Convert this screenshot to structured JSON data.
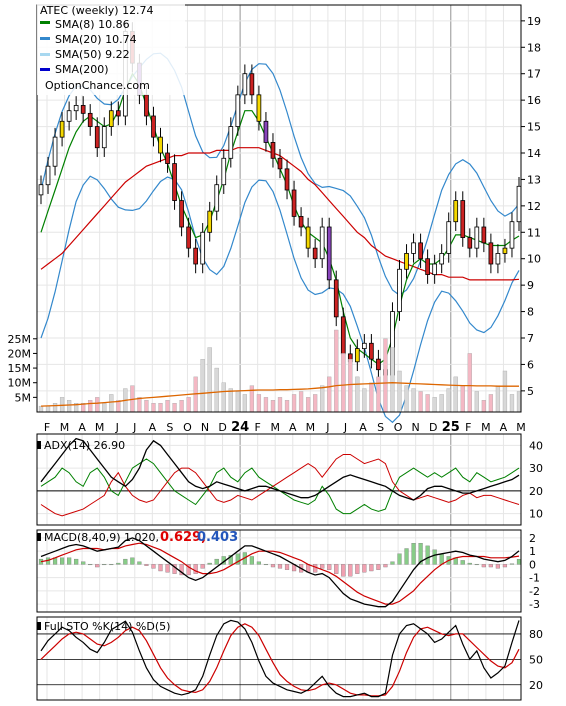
{
  "chart_data": {
    "type": "candlestick",
    "title": "ATEC (weekly) 12.74",
    "watermark": "OptionChance.com",
    "x_labels": [
      "F",
      "M",
      "A",
      "M",
      "J",
      "J",
      "A",
      "S",
      "O",
      "N",
      "D",
      "24",
      "F",
      "M",
      "A",
      "M",
      "J",
      "J",
      "A",
      "S",
      "O",
      "N",
      "D",
      "25",
      "F",
      "M",
      "A",
      "M"
    ],
    "price": {
      "yticks": [
        5,
        6,
        7,
        8,
        9,
        10,
        11,
        12,
        13,
        14,
        15,
        16,
        17,
        18,
        19
      ],
      "ylim": [
        4.2,
        19.6
      ],
      "legend": [
        {
          "label": "SMA(8) 10.86",
          "color": "#008000"
        },
        {
          "label": "SMA(20) 10.74",
          "color": "#3388cc"
        },
        {
          "label": "SMA(50) 9.22",
          "color": "#a8d8f0"
        },
        {
          "label": "SMA(200)",
          "color": "#0000cc"
        }
      ],
      "close": [
        12.8,
        13.5,
        14.6,
        15.2,
        15.6,
        15.8,
        15.5,
        15.0,
        14.2,
        15.0,
        15.6,
        15.4,
        18.6,
        17.4,
        16.2,
        15.4,
        14.6,
        14.0,
        13.6,
        12.2,
        11.2,
        10.4,
        9.8,
        11.0,
        11.8,
        12.8,
        13.8,
        15.0,
        16.2,
        17.0,
        16.2,
        15.2,
        14.4,
        13.8,
        13.4,
        12.6,
        11.6,
        11.2,
        10.4,
        10.0,
        11.2,
        9.2,
        7.8,
        6.4,
        6.1,
        6.6,
        6.8,
        6.2,
        5.8,
        5.6,
        8.0,
        9.6,
        10.2,
        10.6,
        10.0,
        9.4,
        9.8,
        10.2,
        11.4,
        12.2,
        10.8,
        10.4,
        11.2,
        10.6,
        9.8,
        10.2,
        10.4,
        11.4,
        12.74
      ],
      "sma8": [
        11.0,
        11.8,
        12.6,
        13.4,
        14.2,
        14.8,
        15.2,
        15.4,
        15.2,
        15.0,
        15.1,
        15.6,
        16.4,
        17.0,
        16.6,
        15.8,
        15.0,
        14.2,
        13.6,
        12.8,
        12.0,
        11.4,
        10.8,
        10.9,
        11.4,
        12.2,
        13.0,
        14.0,
        14.8,
        15.6,
        15.6,
        15.2,
        14.6,
        14.0,
        13.4,
        12.8,
        12.0,
        11.4,
        11.0,
        10.8,
        10.6,
        10.0,
        9.2,
        8.0,
        7.0,
        6.6,
        6.4,
        6.2,
        6.0,
        6.2,
        7.0,
        8.2,
        9.2,
        9.8,
        10.0,
        9.8,
        9.8,
        10.0,
        10.4,
        10.9,
        10.9,
        10.8,
        10.7,
        10.6,
        10.5,
        10.5,
        10.5,
        10.7,
        10.86
      ],
      "sma20": [
        10.4,
        11.0,
        11.6,
        12.2,
        12.8,
        13.4,
        13.8,
        14.2,
        14.4,
        14.6,
        14.8,
        15.0,
        15.2,
        15.2,
        15.0,
        14.8,
        14.6,
        14.4,
        14.2,
        14.0,
        13.8,
        13.4,
        13.0,
        12.8,
        12.8,
        12.8,
        13.0,
        13.3,
        13.6,
        13.9,
        14.0,
        14.0,
        14.0,
        13.9,
        13.7,
        13.4,
        13.0,
        12.6,
        12.2,
        11.8,
        11.4,
        11.0,
        10.4,
        9.8,
        9.2,
        8.6,
        8.2,
        7.8,
        7.4,
        7.2,
        7.2,
        7.4,
        7.8,
        8.2,
        8.6,
        9.0,
        9.4,
        9.8,
        10.0,
        10.2,
        10.4,
        10.5,
        10.6,
        10.6,
        10.6,
        10.6,
        10.6,
        10.7,
        10.74
      ],
      "sma50": [
        9.6,
        9.8,
        10.0,
        10.2,
        10.5,
        10.8,
        11.1,
        11.4,
        11.7,
        12.0,
        12.3,
        12.6,
        12.9,
        13.1,
        13.3,
        13.5,
        13.6,
        13.7,
        13.8,
        13.9,
        13.9,
        14.0,
        14.0,
        14.0,
        14.0,
        14.1,
        14.1,
        14.1,
        14.2,
        14.2,
        14.2,
        14.2,
        14.1,
        14.0,
        13.9,
        13.7,
        13.5,
        13.3,
        13.0,
        12.8,
        12.5,
        12.2,
        11.9,
        11.6,
        11.3,
        11.0,
        10.8,
        10.5,
        10.3,
        10.1,
        10.0,
        9.9,
        9.8,
        9.7,
        9.6,
        9.5,
        9.4,
        9.4,
        9.3,
        9.3,
        9.3,
        9.2,
        9.2,
        9.2,
        9.2,
        9.2,
        9.2,
        9.2,
        9.22
      ]
    },
    "volume": {
      "yticks": [
        "5M",
        "10M",
        "15M",
        "20M",
        "25M"
      ],
      "ylim": [
        0,
        28
      ],
      "bars": [
        2,
        2,
        3,
        5,
        4,
        3,
        3,
        4,
        5,
        3,
        6,
        4,
        8,
        9,
        5,
        4,
        3,
        3,
        4,
        3,
        4,
        5,
        12,
        18,
        22,
        15,
        10,
        8,
        7,
        6,
        9,
        6,
        5,
        4,
        5,
        4,
        6,
        7,
        5,
        6,
        9,
        12,
        28,
        20,
        18,
        12,
        8,
        10,
        12,
        25,
        22,
        14,
        9,
        8,
        7,
        6,
        5,
        6,
        8,
        12,
        9,
        20,
        7,
        4,
        6,
        9,
        14,
        6,
        7
      ],
      "avg": [
        2,
        2.1,
        2.2,
        2.3,
        2.4,
        2.5,
        2.7,
        2.9,
        3.0,
        3.2,
        3.4,
        3.6,
        4.0,
        4.3,
        4.6,
        4.8,
        5.0,
        5.2,
        5.4,
        5.6,
        5.8,
        6.0,
        6.2,
        6.4,
        6.6,
        6.8,
        7.0,
        7.1,
        7.2,
        7.3,
        7.4,
        7.5,
        7.5,
        7.5,
        7.6,
        7.6,
        7.7,
        7.8,
        7.9,
        8.1,
        8.3,
        8.6,
        9.0,
        9.2,
        9.4,
        9.5,
        9.6,
        9.7,
        9.8,
        9.9,
        10.0,
        9.9,
        9.8,
        9.7,
        9.6,
        9.5,
        9.4,
        9.3,
        9.2,
        9.1,
        9.0,
        9.0,
        8.9,
        8.9,
        8.9,
        8.8,
        8.8,
        8.8,
        8.8
      ]
    },
    "adx": {
      "label": "ADX(14) 26.90",
      "yticks": [
        10,
        20,
        30,
        40
      ],
      "ylim": [
        5,
        45
      ],
      "adx": [
        24,
        28,
        32,
        36,
        40,
        43,
        42,
        38,
        34,
        30,
        26,
        24,
        22,
        25,
        30,
        38,
        42,
        40,
        36,
        32,
        28,
        24,
        22,
        21,
        22,
        24,
        23,
        22,
        21,
        20,
        21,
        22,
        22,
        21,
        20,
        19,
        18,
        17,
        17,
        18,
        20,
        22,
        24,
        26,
        27,
        26,
        25,
        24,
        23,
        22,
        20,
        18,
        17,
        16,
        18,
        21,
        22,
        22,
        21,
        20,
        19,
        19,
        20,
        21,
        22,
        23,
        24,
        25,
        26.9
      ],
      "plus_di": [
        22,
        24,
        26,
        30,
        28,
        24,
        22,
        28,
        30,
        26,
        20,
        18,
        24,
        30,
        32,
        34,
        32,
        28,
        24,
        20,
        18,
        16,
        14,
        18,
        22,
        28,
        30,
        26,
        24,
        28,
        30,
        26,
        24,
        22,
        20,
        18,
        16,
        15,
        14,
        16,
        22,
        18,
        12,
        10,
        10,
        12,
        14,
        12,
        11,
        12,
        20,
        26,
        28,
        30,
        28,
        26,
        28,
        26,
        28,
        30,
        26,
        24,
        28,
        26,
        24,
        25,
        26,
        28,
        30
      ],
      "minus_di": [
        14,
        12,
        10,
        9,
        10,
        11,
        12,
        14,
        16,
        18,
        24,
        28,
        22,
        18,
        16,
        15,
        16,
        20,
        24,
        28,
        30,
        30,
        28,
        24,
        20,
        16,
        15,
        16,
        18,
        17,
        16,
        18,
        20,
        22,
        24,
        26,
        28,
        30,
        32,
        30,
        26,
        30,
        34,
        36,
        36,
        34,
        32,
        33,
        34,
        32,
        24,
        20,
        18,
        16,
        17,
        18,
        17,
        16,
        15,
        16,
        18,
        19,
        17,
        18,
        18,
        17,
        16,
        15,
        14
      ]
    },
    "macd": {
      "label": "MACD(8,40,9) 1.020,",
      "signal_label": "0.629,",
      "hist_label": "0.403",
      "yticks": [
        -3,
        -2,
        -1,
        0,
        1,
        2
      ],
      "ylim": [
        -3.6,
        2.6
      ],
      "macd": [
        0.6,
        0.8,
        1.0,
        1.2,
        1.4,
        1.5,
        1.4,
        1.2,
        1.0,
        1.1,
        1.2,
        1.3,
        1.8,
        2.0,
        1.8,
        1.4,
        1.0,
        0.6,
        0.2,
        -0.2,
        -0.6,
        -1.0,
        -1.2,
        -1.0,
        -0.6,
        -0.2,
        0.2,
        0.6,
        1.0,
        1.4,
        1.4,
        1.2,
        1.0,
        0.8,
        0.6,
        0.3,
        0.0,
        -0.3,
        -0.6,
        -0.8,
        -0.7,
        -1.0,
        -1.6,
        -2.2,
        -2.6,
        -2.8,
        -3.0,
        -3.1,
        -3.2,
        -3.2,
        -2.8,
        -2.0,
        -1.2,
        -0.4,
        0.2,
        0.5,
        0.7,
        0.8,
        0.9,
        1.0,
        0.9,
        0.7,
        0.6,
        0.4,
        0.3,
        0.2,
        0.3,
        0.6,
        1.02
      ],
      "signal": [
        0.2,
        0.3,
        0.5,
        0.7,
        0.9,
        1.1,
        1.2,
        1.2,
        1.2,
        1.1,
        1.2,
        1.2,
        1.4,
        1.5,
        1.6,
        1.5,
        1.3,
        1.1,
        0.8,
        0.5,
        0.2,
        -0.2,
        -0.5,
        -0.7,
        -0.7,
        -0.6,
        -0.4,
        -0.1,
        0.2,
        0.5,
        0.8,
        1.0,
        1.0,
        1.0,
        0.9,
        0.7,
        0.5,
        0.3,
        0.0,
        -0.2,
        -0.4,
        -0.6,
        -0.9,
        -1.3,
        -1.7,
        -2.1,
        -2.4,
        -2.6,
        -2.8,
        -3.0,
        -3.0,
        -2.8,
        -2.4,
        -2.0,
        -1.4,
        -0.9,
        -0.4,
        0.0,
        0.3,
        0.5,
        0.6,
        0.6,
        0.6,
        0.6,
        0.5,
        0.5,
        0.5,
        0.55,
        0.629
      ]
    },
    "sto": {
      "label": "Full STO %K(14) %D(5)",
      "yticks": [
        20,
        50,
        80
      ],
      "ylim": [
        2,
        100
      ],
      "k": [
        60,
        72,
        80,
        88,
        84,
        76,
        70,
        62,
        58,
        70,
        85,
        90,
        95,
        82,
        60,
        40,
        26,
        18,
        14,
        10,
        8,
        10,
        14,
        30,
        55,
        78,
        92,
        96,
        94,
        86,
        70,
        48,
        30,
        22,
        18,
        14,
        12,
        10,
        14,
        22,
        30,
        18,
        10,
        6,
        6,
        8,
        10,
        6,
        6,
        10,
        55,
        80,
        90,
        92,
        86,
        80,
        70,
        74,
        82,
        90,
        68,
        50,
        60,
        40,
        28,
        34,
        42,
        70,
        96
      ],
      "d": [
        50,
        58,
        66,
        74,
        80,
        82,
        80,
        74,
        68,
        66,
        70,
        76,
        84,
        88,
        84,
        72,
        56,
        40,
        28,
        20,
        14,
        12,
        11,
        14,
        24,
        40,
        60,
        78,
        88,
        92,
        88,
        78,
        62,
        46,
        32,
        24,
        18,
        14,
        13,
        15,
        20,
        22,
        20,
        15,
        10,
        8,
        8,
        7,
        7,
        8,
        18,
        36,
        58,
        76,
        86,
        88,
        84,
        80,
        78,
        80,
        80,
        72,
        64,
        56,
        48,
        42,
        40,
        46,
        62
      ]
    }
  }
}
